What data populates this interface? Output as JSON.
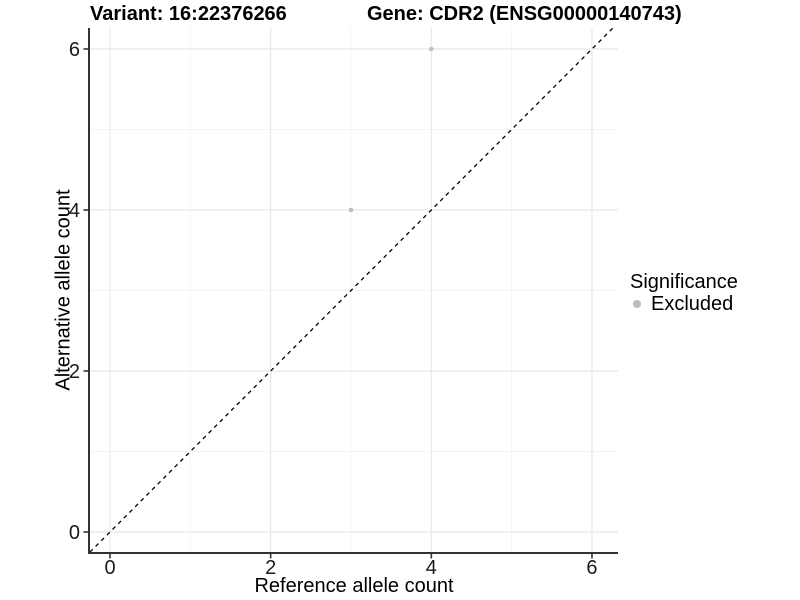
{
  "chart_data": {
    "type": "scatter",
    "title_left": "Variant: 16:22376266",
    "title_right": "Gene: CDR2 (ENSG00000140743)",
    "xlabel": "Reference allele count",
    "ylabel": "Alternative allele count",
    "xlim": [
      -0.25,
      6.32
    ],
    "ylim": [
      -0.25,
      6.27
    ],
    "xticks": [
      0,
      2,
      4,
      6
    ],
    "yticks": [
      0,
      2,
      4,
      6
    ],
    "minor_xticks": [
      1,
      3,
      5
    ],
    "minor_yticks": [
      1,
      3,
      5
    ],
    "grid": "on",
    "legend_position": "right",
    "series": [
      {
        "name": "Excluded",
        "color": "#bdbdbd",
        "points": [
          [
            3,
            4
          ],
          [
            4,
            6
          ]
        ]
      }
    ],
    "reference_line": {
      "kind": "identity",
      "slope": 1,
      "intercept": 0,
      "style": "dashed",
      "color": "#000000"
    },
    "legend": {
      "title": "Significance",
      "items": [
        {
          "label": "Excluded",
          "color": "#bdbdbd"
        }
      ]
    },
    "palette": {
      "axis_line": "#333333",
      "tick_mark": "#333333",
      "tick_label": "#1a1a1a",
      "grid_major": "#e8e8e8",
      "grid_minor": "#f4f4f4",
      "point": "#bdbdbd",
      "background": "#ffffff"
    }
  }
}
